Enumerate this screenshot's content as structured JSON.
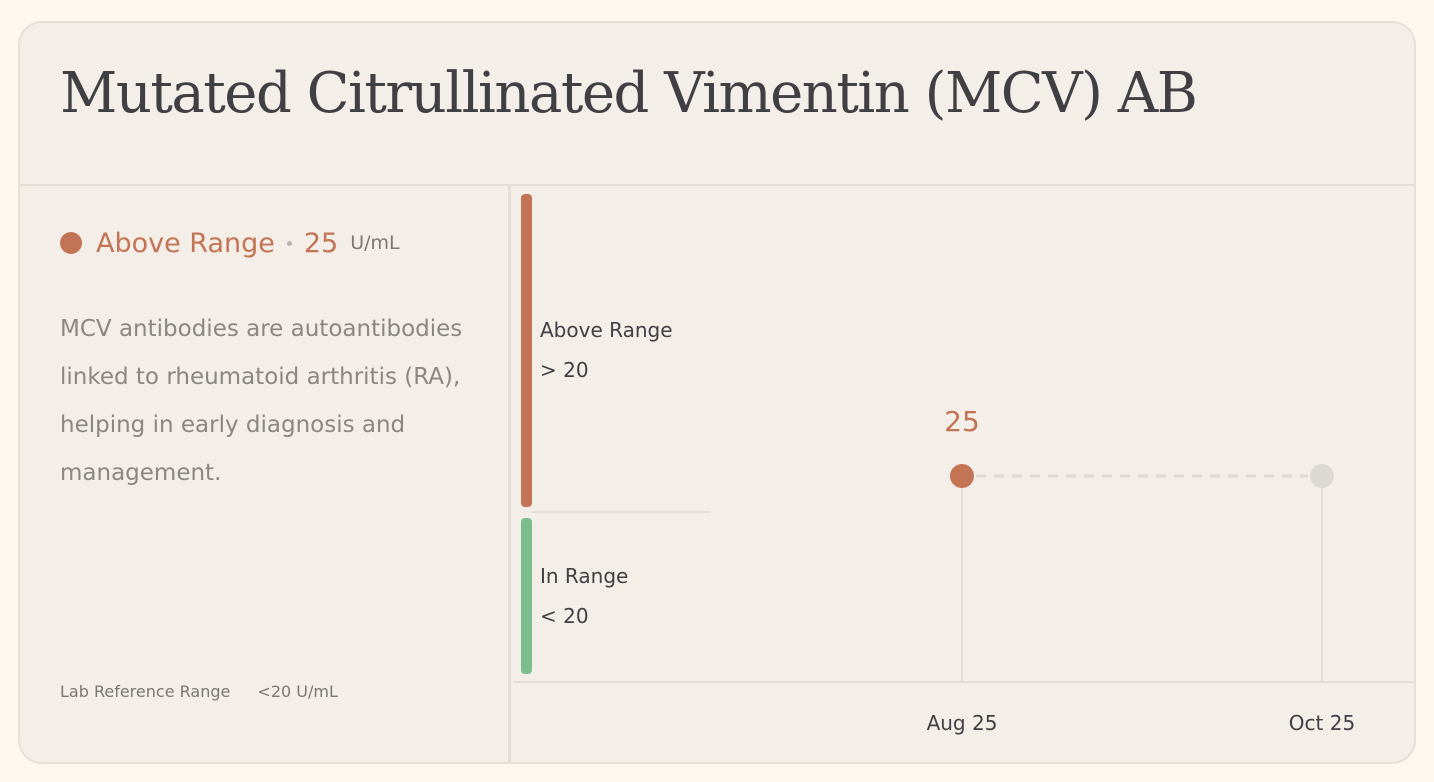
{
  "title": "Mutated Citrullinated Vimentin (MCV) AB",
  "status": {
    "label": "Above Range",
    "value": "25",
    "unit": "U/mL",
    "color": "#c27455"
  },
  "description": "MCV antibodies are autoantibodies linked to rheumatoid arthritis (RA), helping in early diagnosis and management.",
  "reference": {
    "label": "Lab Reference Range",
    "value": "<20 U/mL"
  },
  "ranges": {
    "above": {
      "label": "Above Range",
      "threshold": "> 20",
      "color": "#c27455"
    },
    "in_range": {
      "label": "In Range",
      "threshold": "< 20",
      "color": "#7bbd8c"
    }
  },
  "chart_data": {
    "type": "line",
    "categories": [
      "Aug 25",
      "Oct 25"
    ],
    "series": [
      {
        "values": [
          25,
          null
        ],
        "color": "#c27455"
      }
    ],
    "data_labels": [
      "25",
      ""
    ],
    "placeholder_color": "#dcd8d2"
  }
}
